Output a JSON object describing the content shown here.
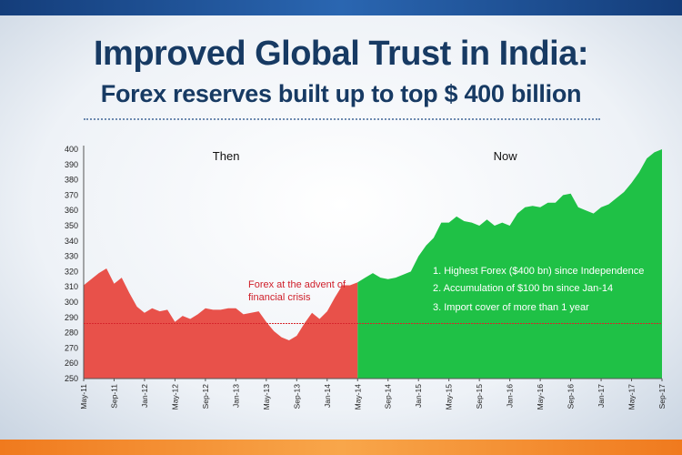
{
  "header": {
    "title": "Improved Global Trust in India:",
    "subtitle": "Forex reserves built up to top  $ 400 billion"
  },
  "chart_data": {
    "type": "area",
    "title": "Improved Global Trust in India:",
    "subtitle": "Forex reserves built up to top  $ 400 billion",
    "xlabel": "",
    "ylabel": "",
    "ylim": [
      250,
      400
    ],
    "yticks": [
      250,
      260,
      270,
      280,
      290,
      300,
      310,
      320,
      330,
      340,
      350,
      360,
      370,
      380,
      390,
      400
    ],
    "x_ticks": [
      "May-11",
      "Sep-11",
      "Jan-12",
      "May-12",
      "Sep-12",
      "Jan-13",
      "May-13",
      "Sep-13",
      "Jan-14",
      "May-14",
      "Sep-14",
      "Jan-15",
      "May-15",
      "Sep-15",
      "Jan-16",
      "May-16",
      "Sep-16",
      "Jan-17",
      "May-17",
      "Sep-17"
    ],
    "grid": false,
    "periods": [
      {
        "name": "Then",
        "color": "#e8514a",
        "start_index": 0,
        "end_index": 36
      },
      {
        "name": "Now",
        "color": "#1fc146",
        "start_index": 36,
        "end_index": 76
      }
    ],
    "reference_line": {
      "value": 286,
      "color": "#d6262c"
    },
    "series": [
      {
        "x": [
          "May-11",
          "Jun-11",
          "Jul-11",
          "Aug-11",
          "Sep-11",
          "Oct-11",
          "Nov-11",
          "Dec-11",
          "Jan-12",
          "Feb-12",
          "Mar-12",
          "Apr-12",
          "May-12",
          "Jun-12",
          "Jul-12",
          "Aug-12",
          "Sep-12",
          "Oct-12",
          "Nov-12",
          "Dec-12",
          "Jan-13",
          "Feb-13",
          "Mar-13",
          "Apr-13",
          "May-13",
          "Jun-13",
          "Jul-13",
          "Aug-13",
          "Sep-13",
          "Oct-13",
          "Nov-13",
          "Dec-13",
          "Jan-14",
          "Feb-14",
          "Mar-14",
          "Apr-14",
          "May-14",
          "Jun-14",
          "Jul-14",
          "Aug-14",
          "Sep-14",
          "Oct-14",
          "Nov-14",
          "Dec-14",
          "Jan-15",
          "Feb-15",
          "Mar-15",
          "Apr-15",
          "May-15",
          "Jun-15",
          "Jul-15",
          "Aug-15",
          "Sep-15",
          "Oct-15",
          "Nov-15",
          "Dec-15",
          "Jan-16",
          "Feb-16",
          "Mar-16",
          "Apr-16",
          "May-16",
          "Jun-16",
          "Jul-16",
          "Aug-16",
          "Sep-16",
          "Oct-16",
          "Nov-16",
          "Dec-16",
          "Jan-17",
          "Feb-17",
          "Mar-17",
          "Apr-17",
          "May-17",
          "Jun-17",
          "Jul-17",
          "Aug-17",
          "Sep-17"
        ],
        "values": [
          311,
          315,
          319,
          322,
          312,
          316,
          306,
          297,
          293,
          296,
          294,
          295,
          287,
          291,
          289,
          292,
          296,
          295,
          295,
          296,
          296,
          292,
          293,
          294,
          287,
          281,
          277,
          275,
          278,
          286,
          293,
          289,
          294,
          303,
          311,
          311,
          313,
          316,
          319,
          316,
          315,
          316,
          318,
          320,
          330,
          337,
          342,
          352,
          352,
          356,
          353,
          352,
          350,
          354,
          350,
          352,
          350,
          358,
          362,
          363,
          362,
          365,
          365,
          370,
          371,
          362,
          360,
          358,
          362,
          364,
          368,
          372,
          378,
          385,
          394,
          398,
          400
        ]
      }
    ],
    "annotation": {
      "line1": "Forex at the advent of",
      "line2": "financial crisis",
      "value": 306
    },
    "facts": [
      "1. Highest Forex ($400 bn) since Independence",
      "2. Accumulation of $100 bn since Jan-14",
      "3. Import cover of more than 1 year"
    ]
  }
}
